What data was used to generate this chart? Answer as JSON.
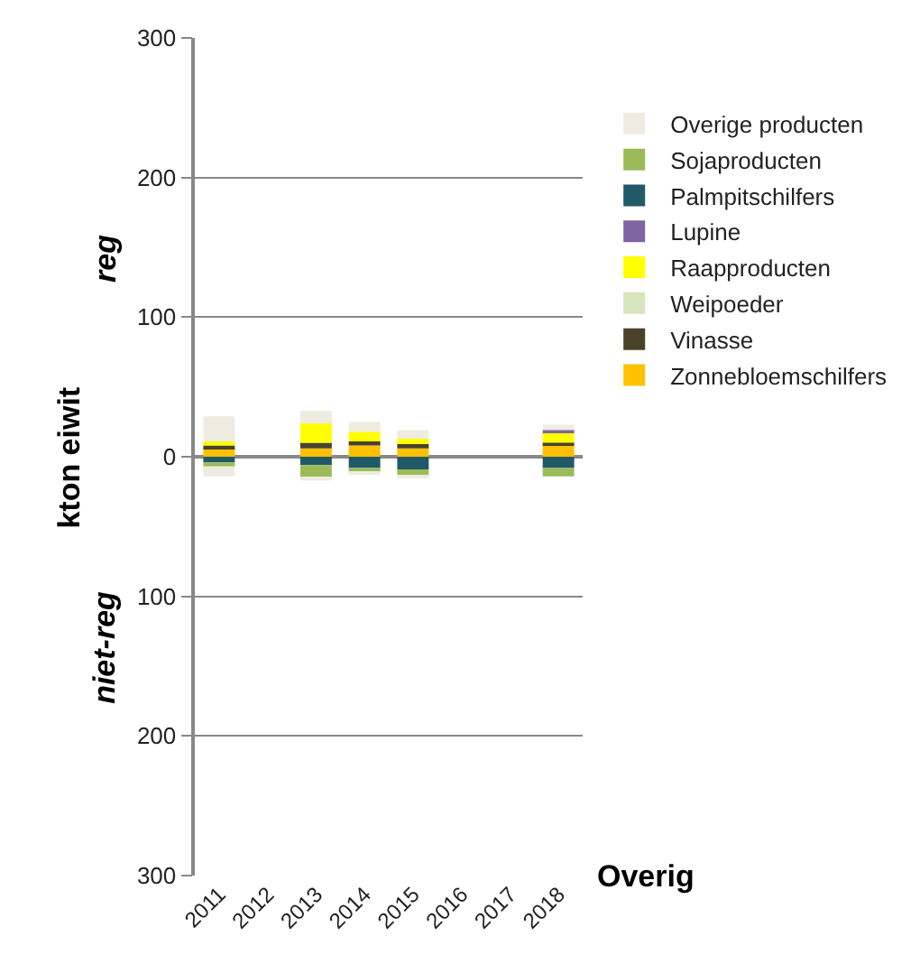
{
  "chart_data": {
    "type": "bar",
    "stacked": true,
    "xlabel": "Overig",
    "ylabel": "kton eiwit",
    "annotations": [
      "reg",
      "niet-reg"
    ],
    "categories": [
      "2011",
      "2012",
      "2013",
      "2014",
      "2015",
      "2016",
      "2017",
      "2018"
    ],
    "ylim": [
      -300,
      300
    ],
    "yticks": [
      {
        "value": -300,
        "label": "300"
      },
      {
        "value": -200,
        "label": "200"
      },
      {
        "value": -100,
        "label": "100"
      },
      0,
      100,
      200,
      300
    ],
    "grid": "y",
    "legend": "right",
    "series": [
      {
        "name": "Zonnebloemschilfers",
        "color": "#ffc000",
        "values": [
          6,
          null,
          6,
          8,
          6,
          null,
          null,
          8
        ]
      },
      {
        "name": "Vinasse",
        "color": "#4a4228",
        "values": [
          2,
          null,
          4,
          3,
          3,
          null,
          null,
          2
        ]
      },
      {
        "name": "Weipoeder",
        "color": "#d7e4bd",
        "values": [
          null,
          null,
          null,
          null,
          null,
          null,
          null,
          null
        ]
      },
      {
        "name": "Raapproducten",
        "color": "#ffff00",
        "values": [
          3,
          null,
          14,
          7,
          4,
          null,
          null,
          7
        ]
      },
      {
        "name": "Lupine",
        "color": "#8064a2",
        "values": [
          null,
          null,
          null,
          null,
          null,
          null,
          null,
          2
        ]
      },
      {
        "name": "Palmpitschilfers",
        "color": "#215968",
        "values": [
          null,
          null,
          null,
          null,
          null,
          null,
          null,
          null
        ]
      },
      {
        "name": "Sojaproducten",
        "color": "#9bbb59",
        "values": [
          null,
          null,
          null,
          null,
          null,
          null,
          null,
          null
        ]
      },
      {
        "name": "Overige producten",
        "color": "#eeece1",
        "values": [
          18,
          null,
          9,
          7,
          6,
          null,
          null,
          4
        ]
      },
      {
        "color": "#215968",
        "values": [
          -4,
          null,
          -6,
          -8,
          -9,
          null,
          null,
          -8
        ]
      },
      {
        "color": "#9bbb59",
        "values": [
          -3,
          null,
          -9,
          -3,
          -4,
          null,
          null,
          -6
        ]
      },
      {
        "color": "#eeece1",
        "values": [
          -7,
          null,
          -2,
          -1,
          -2,
          null,
          null,
          null
        ]
      }
    ]
  }
}
